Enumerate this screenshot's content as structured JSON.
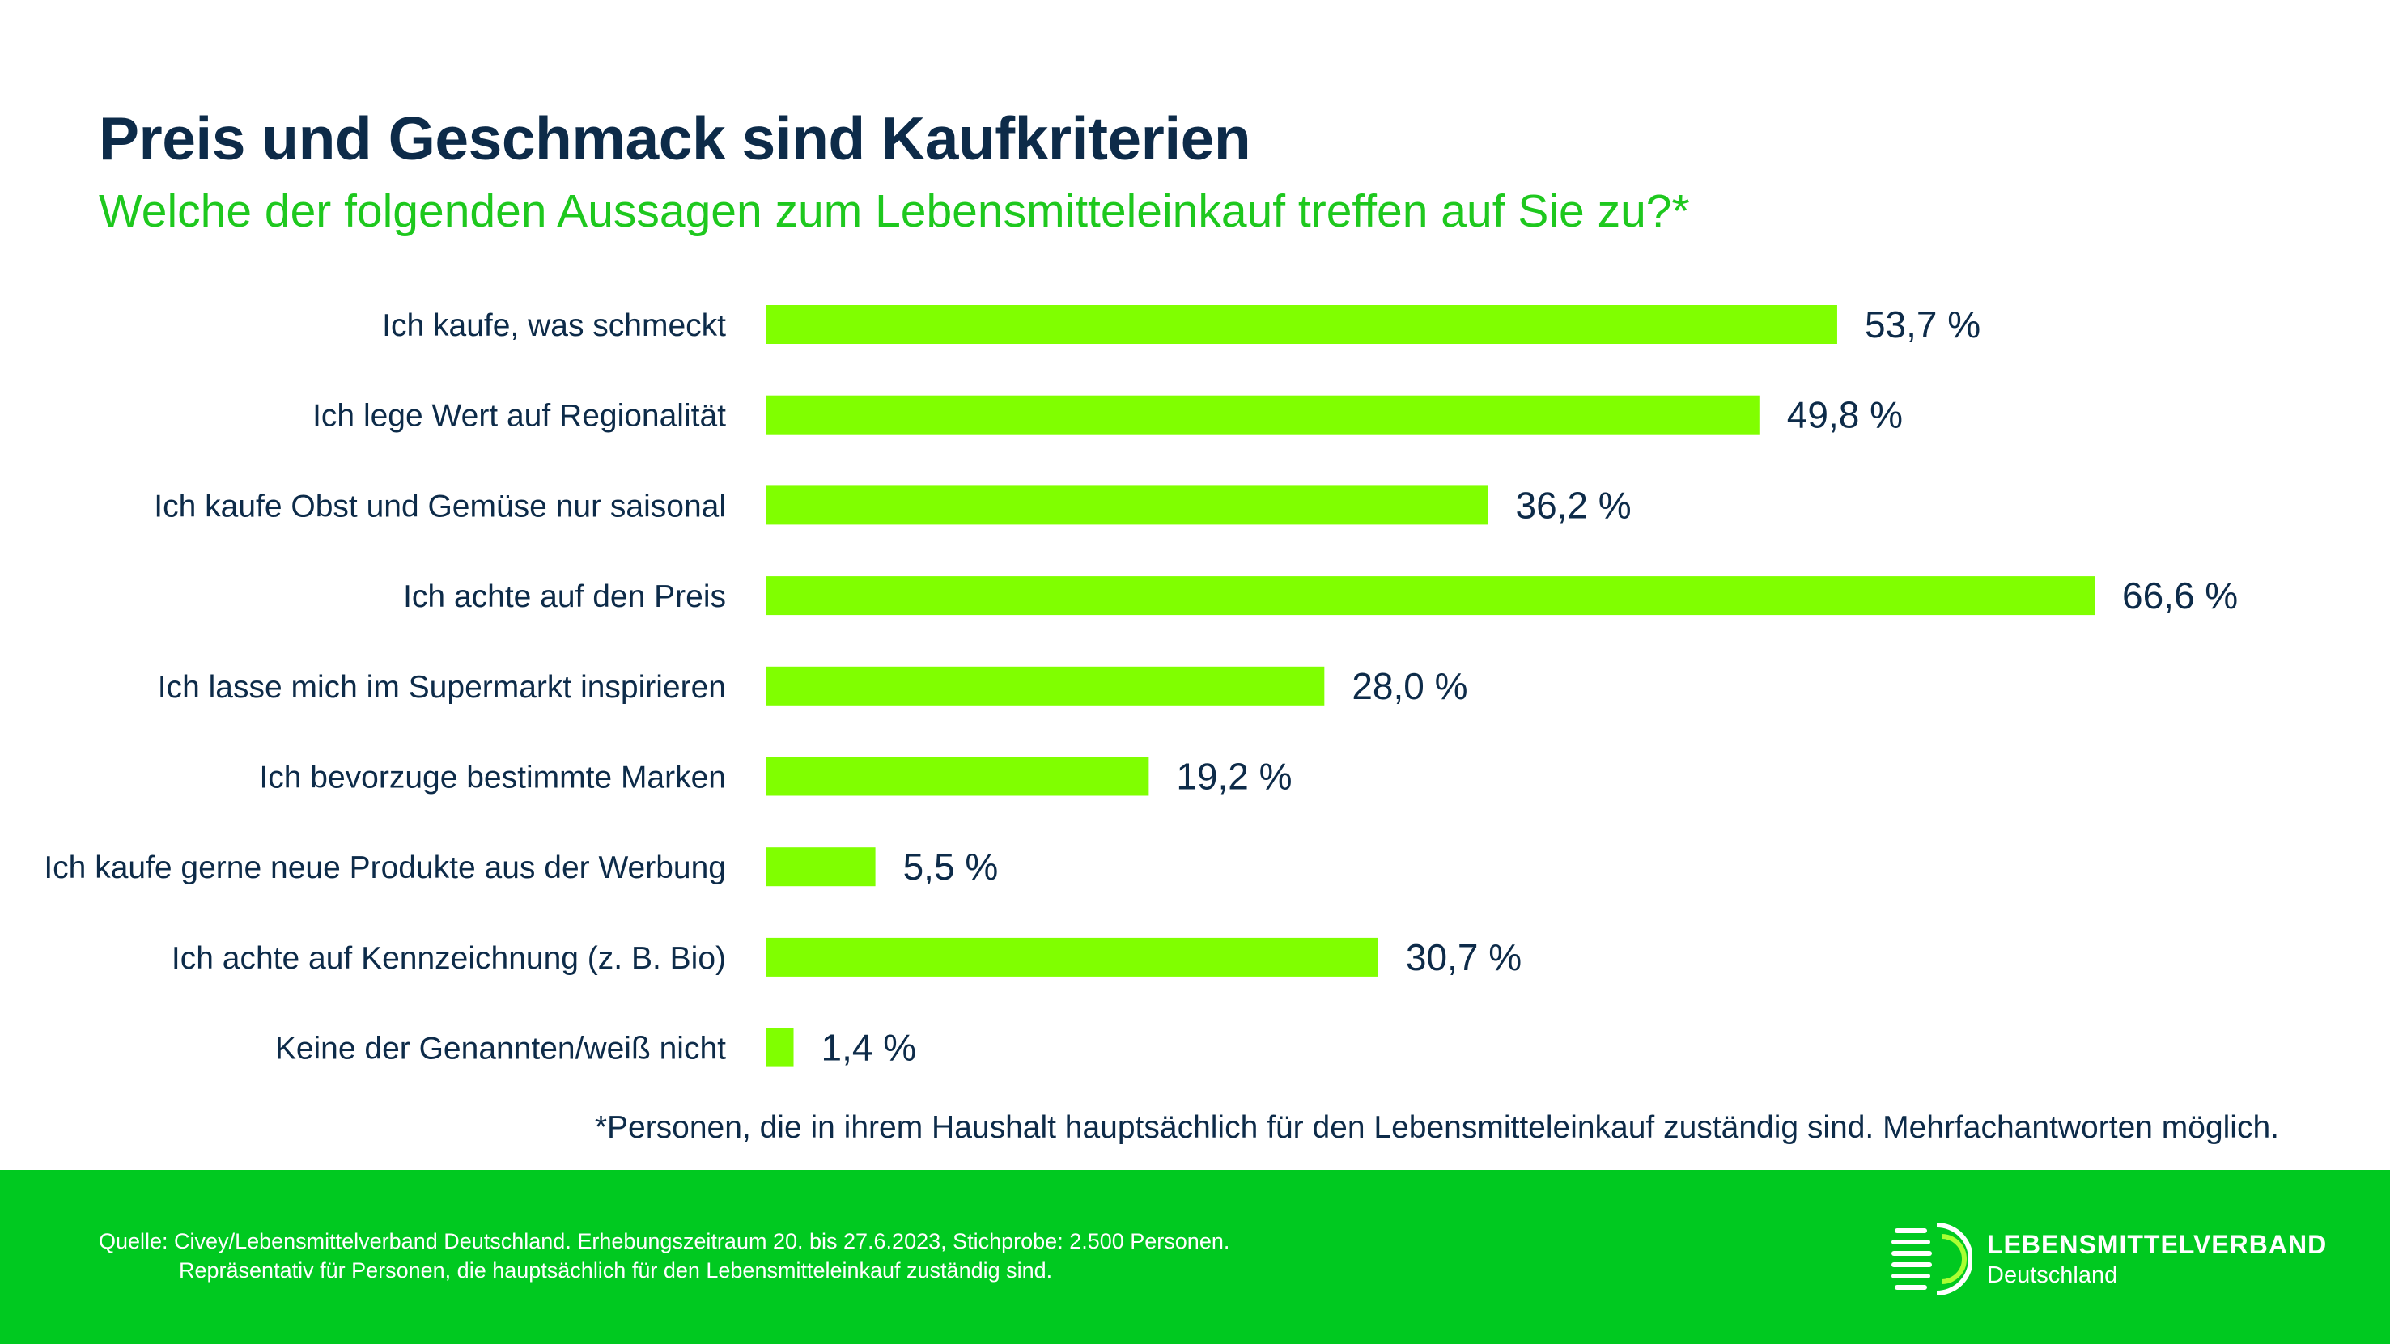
{
  "header": {
    "title": "Preis und Geschmack sind Kaufkriterien",
    "subtitle": "Welche der folgenden Aussagen zum Lebensmitteleinkauf treffen auf Sie zu?*"
  },
  "chart_data": {
    "type": "bar",
    "orientation": "horizontal",
    "title": "Preis und Geschmack sind Kaufkriterien",
    "subtitle": "Welche der folgenden Aussagen zum Lebensmitteleinkauf treffen auf Sie zu?*",
    "categories": [
      "Ich kaufe, was schmeckt",
      "Ich lege Wert auf Regionalität",
      "Ich kaufe Obst und Gemüse nur saisonal",
      "Ich achte auf den Preis",
      "Ich lasse mich im Supermarkt inspirieren",
      "Ich bevorzuge bestimmte Marken",
      "Ich kaufe gerne neue Produkte aus der Werbung",
      "Ich achte auf Kennzeichnung (z. B. Bio)",
      "Keine der Genannten/weiß nicht"
    ],
    "values": [
      53.7,
      49.8,
      36.2,
      66.6,
      28.0,
      19.2,
      5.5,
      30.7,
      1.4
    ],
    "value_labels": [
      "53,7 %",
      "49,8 %",
      "36,2 %",
      "66,6 %",
      "28,0 %",
      "19,2 %",
      "5,5 %",
      "30,7 %",
      "1,4 %"
    ],
    "unit": "%",
    "xlim": [
      0,
      66.6
    ],
    "grid": false,
    "bar_color": "#80ff00"
  },
  "footnote": "*Personen, die in ihrem Haushalt hauptsächlich für den Lebensmitteleinkauf zuständig sind. Mehrfachantworten möglich.",
  "footer": {
    "source_line1": "Quelle: Civey/Lebensmittelverband Deutschland. Erhebungszeitraum 20. bis 27.6.2023, Stichprobe: 2.500 Personen.",
    "source_line2": "Repräsentativ für Personen, die hauptsächlich für den Lebensmitteleinkauf zuständig sind.",
    "brand_name": "LEBENSMITTELVERBAND",
    "brand_sub": "Deutschland",
    "logo_icon": "lebensmittelverband-logo-icon",
    "background_color": "#00c920"
  },
  "colors": {
    "title": "#0d2b49",
    "subtitle": "#1ec81e",
    "bars": "#80ff00"
  }
}
